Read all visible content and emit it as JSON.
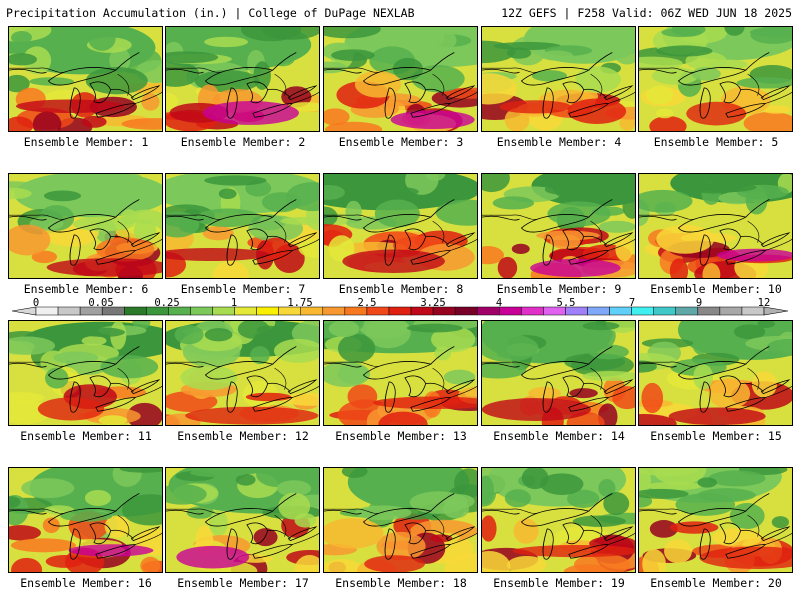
{
  "header": {
    "title_left": "Precipitation Accumulation (in.) | College of DuPage NEXLAB",
    "title_right": "12Z GEFS | F258 Valid: 06Z WED JUN 18 2025"
  },
  "panels": [
    {
      "label": "Ensemble Member: 1"
    },
    {
      "label": "Ensemble Member: 2"
    },
    {
      "label": "Ensemble Member: 3"
    },
    {
      "label": "Ensemble Member: 4"
    },
    {
      "label": "Ensemble Member: 5"
    },
    {
      "label": "Ensemble Member: 6"
    },
    {
      "label": "Ensemble Member: 7"
    },
    {
      "label": "Ensemble Member: 8"
    },
    {
      "label": "Ensemble Member: 9"
    },
    {
      "label": "Ensemble Member: 10"
    },
    {
      "label": "Ensemble Member: 11"
    },
    {
      "label": "Ensemble Member: 12"
    },
    {
      "label": "Ensemble Member: 13"
    },
    {
      "label": "Ensemble Member: 14"
    },
    {
      "label": "Ensemble Member: 15"
    },
    {
      "label": "Ensemble Member: 16"
    },
    {
      "label": "Ensemble Member: 17"
    },
    {
      "label": "Ensemble Member: 18"
    },
    {
      "label": "Ensemble Member: 19"
    },
    {
      "label": "Ensemble Member: 20"
    }
  ],
  "colorbar": {
    "labels": [
      "0",
      "0.05",
      "0.25",
      "1",
      "1.75",
      "2.5",
      "3.25",
      "4",
      "5.5",
      "7",
      "9",
      "12"
    ],
    "colors": [
      "#f0f0f0",
      "#c8c8c8",
      "#a0a0a0",
      "#787878",
      "#2a7a2a",
      "#3c963c",
      "#56b04e",
      "#7cc85a",
      "#a8dc50",
      "#e4e838",
      "#f8f000",
      "#f8d838",
      "#f8b830",
      "#f89830",
      "#f87820",
      "#f04818",
      "#e02010",
      "#c00818",
      "#980020",
      "#780028",
      "#a00068",
      "#c80098",
      "#e030c8",
      "#e060f0",
      "#a080f8",
      "#80a8f8",
      "#60d0f8",
      "#40f0f0",
      "#40c8c8",
      "#60a8a8",
      "#888888",
      "#a8a8a8",
      "#c8c8c8"
    ],
    "end_colors": [
      "#d8d8d8",
      "#b0b0b0"
    ]
  }
}
